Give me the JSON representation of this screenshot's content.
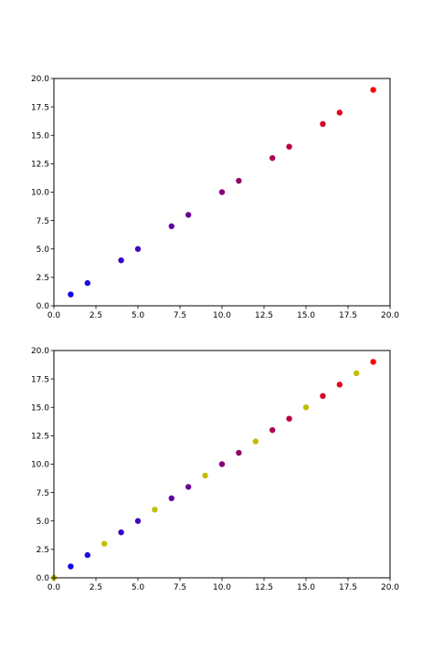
{
  "chart_data": [
    {
      "type": "scatter",
      "title": "",
      "xlabel": "",
      "ylabel": "",
      "xlim": [
        0,
        20
      ],
      "ylim": [
        0,
        20
      ],
      "xticks": [
        "0.0",
        "2.5",
        "5.0",
        "7.5",
        "10.0",
        "12.5",
        "15.0",
        "17.5",
        "20.0"
      ],
      "yticks": [
        "0.0",
        "2.5",
        "5.0",
        "7.5",
        "10.0",
        "12.5",
        "15.0",
        "17.5",
        "20.0"
      ],
      "grid": false,
      "series": [
        {
          "color_scale": "blue-to-red gradient by x value",
          "points": [
            {
              "x": 1,
              "y": 1,
              "color": "#1405eb"
            },
            {
              "x": 2,
              "y": 2,
              "color": "#1f0ae0"
            },
            {
              "x": 4,
              "y": 4,
              "color": "#3a07c5"
            },
            {
              "x": 5,
              "y": 5,
              "color": "#4305bc"
            },
            {
              "x": 7,
              "y": 7,
              "color": "#5e03a1"
            },
            {
              "x": 8,
              "y": 8,
              "color": "#6b0394"
            },
            {
              "x": 10,
              "y": 10,
              "color": "#860279"
            },
            {
              "x": 11,
              "y": 11,
              "color": "#93016c"
            },
            {
              "x": 13,
              "y": 13,
              "color": "#ad0152"
            },
            {
              "x": 14,
              "y": 14,
              "color": "#bb0144"
            },
            {
              "x": 16,
              "y": 16,
              "color": "#d6002a"
            },
            {
              "x": 17,
              "y": 17,
              "color": "#e3001c"
            },
            {
              "x": 19,
              "y": 19,
              "color": "#fd0002"
            }
          ]
        }
      ]
    },
    {
      "type": "scatter",
      "title": "",
      "xlabel": "",
      "ylabel": "",
      "xlim": [
        0,
        20
      ],
      "ylim": [
        0,
        20
      ],
      "xticks": [
        "0.0",
        "2.5",
        "5.0",
        "7.5",
        "10.0",
        "12.5",
        "15.0",
        "17.5",
        "20.0"
      ],
      "yticks": [
        "0.0",
        "2.5",
        "5.0",
        "7.5",
        "10.0",
        "12.5",
        "15.0",
        "17.5",
        "20.0"
      ],
      "grid": false,
      "series": [
        {
          "color_scale": "blue-to-red gradient by x value",
          "points": [
            {
              "x": 1,
              "y": 1,
              "color": "#1405eb"
            },
            {
              "x": 2,
              "y": 2,
              "color": "#1f0ae0"
            },
            {
              "x": 4,
              "y": 4,
              "color": "#3a07c5"
            },
            {
              "x": 5,
              "y": 5,
              "color": "#4305bc"
            },
            {
              "x": 7,
              "y": 7,
              "color": "#5e03a1"
            },
            {
              "x": 8,
              "y": 8,
              "color": "#6b0394"
            },
            {
              "x": 10,
              "y": 10,
              "color": "#860279"
            },
            {
              "x": 11,
              "y": 11,
              "color": "#93016c"
            },
            {
              "x": 13,
              "y": 13,
              "color": "#ad0152"
            },
            {
              "x": 14,
              "y": 14,
              "color": "#bb0144"
            },
            {
              "x": 16,
              "y": 16,
              "color": "#d6002a"
            },
            {
              "x": 17,
              "y": 17,
              "color": "#e3001c"
            },
            {
              "x": 19,
              "y": 19,
              "color": "#fd0002"
            }
          ]
        },
        {
          "color_scale": "yellow (olive)",
          "points": [
            {
              "x": 0,
              "y": 0,
              "color": "#bfbf00"
            },
            {
              "x": 3,
              "y": 3,
              "color": "#bfbf00"
            },
            {
              "x": 6,
              "y": 6,
              "color": "#bfbf00"
            },
            {
              "x": 9,
              "y": 9,
              "color": "#bfbf00"
            },
            {
              "x": 12,
              "y": 12,
              "color": "#bfbf00"
            },
            {
              "x": 15,
              "y": 15,
              "color": "#bfbf00"
            },
            {
              "x": 18,
              "y": 18,
              "color": "#bfbf00"
            }
          ]
        }
      ]
    }
  ]
}
